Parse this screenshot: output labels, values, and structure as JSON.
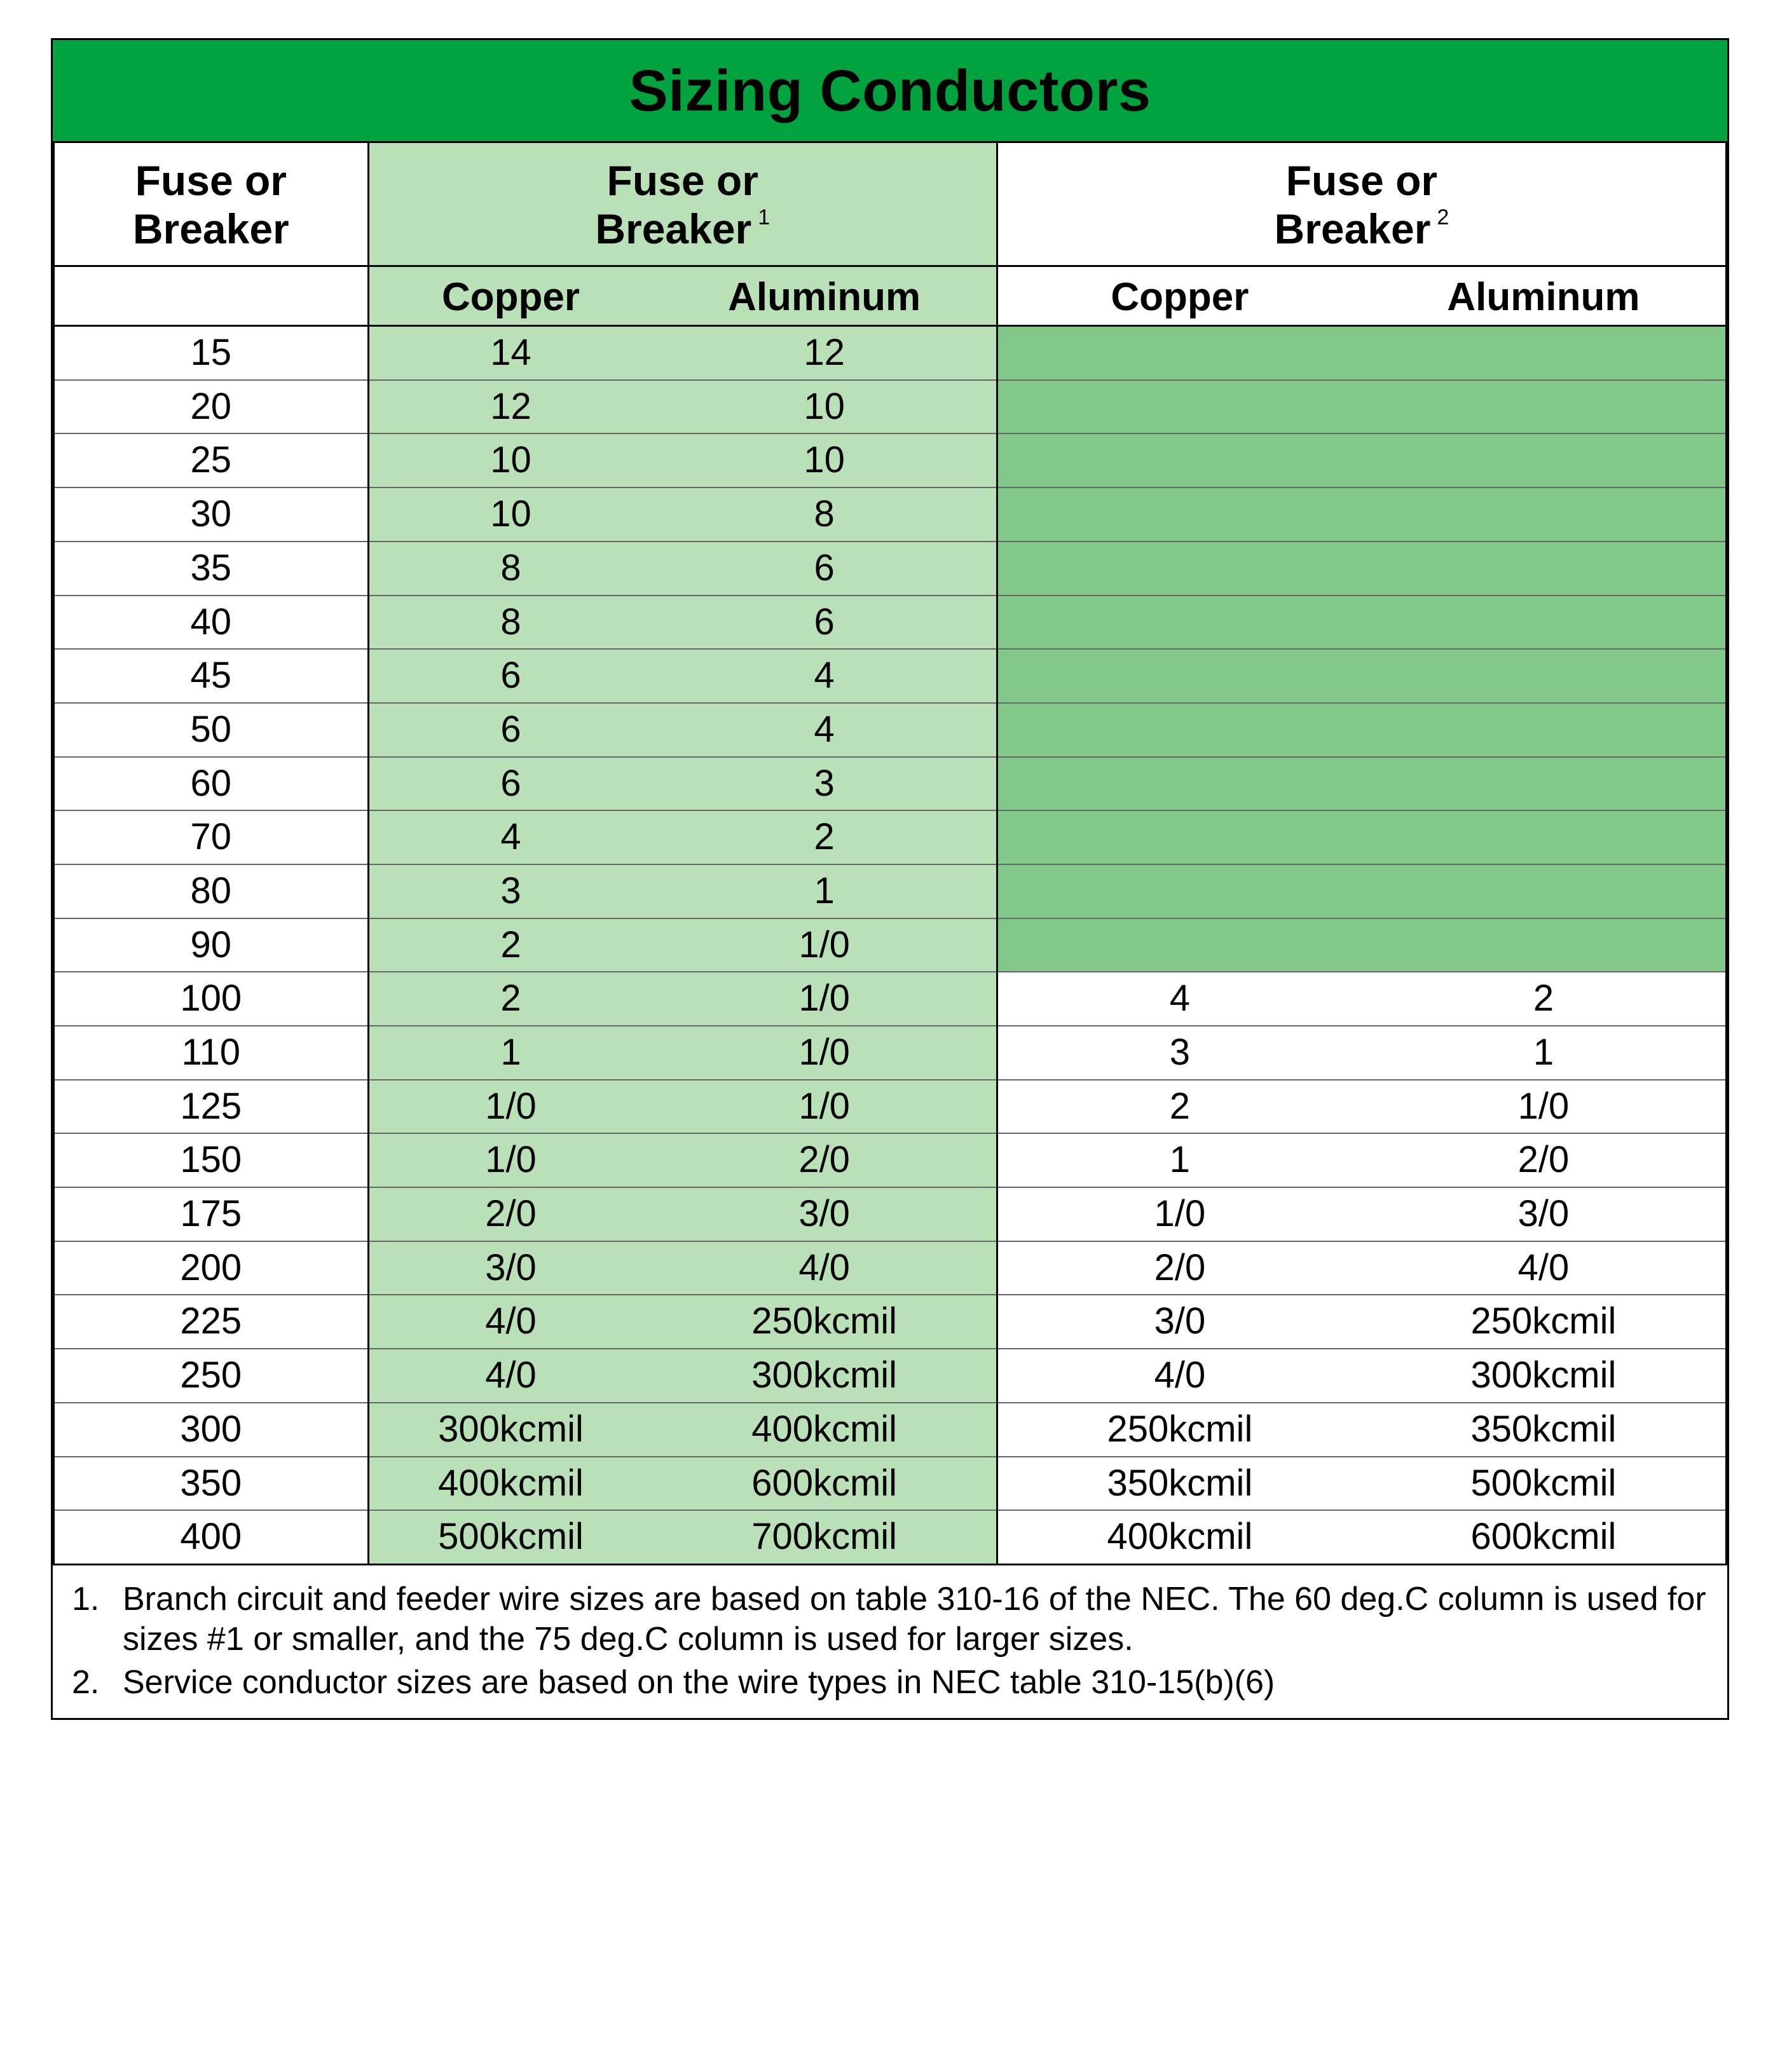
{
  "title": "Sizing Conductors",
  "colors": {
    "header_bg": "#00a33e",
    "light_green": "#b9e0b6",
    "mid_green": "#82c889",
    "border_dark": "#000000",
    "border_light": "#666666",
    "text": "#000000",
    "bg": "#ffffff"
  },
  "typography": {
    "title_fontsize": 92,
    "title_weight": 900,
    "header_fontsize": 66,
    "subheader_fontsize": 62,
    "cell_fontsize": 58,
    "footnote_fontsize": 52,
    "font_family": "Verdana, Tahoma, Arial, sans-serif"
  },
  "headers": {
    "col0": "Fuse or Breaker",
    "group1": "Fuse or Breaker",
    "group1_sup": "1",
    "group2": "Fuse or Breaker",
    "group2_sup": "2",
    "copper": "Copper",
    "aluminum": "Aluminum"
  },
  "rows": [
    {
      "fb": "15",
      "c1": "14",
      "a1": "12",
      "c2": "",
      "a2": "",
      "na2": true
    },
    {
      "fb": "20",
      "c1": "12",
      "a1": "10",
      "c2": "",
      "a2": "",
      "na2": true
    },
    {
      "fb": "25",
      "c1": "10",
      "a1": "10",
      "c2": "",
      "a2": "",
      "na2": true
    },
    {
      "fb": "30",
      "c1": "10",
      "a1": "8",
      "c2": "",
      "a2": "",
      "na2": true
    },
    {
      "fb": "35",
      "c1": "8",
      "a1": "6",
      "c2": "",
      "a2": "",
      "na2": true
    },
    {
      "fb": "40",
      "c1": "8",
      "a1": "6",
      "c2": "",
      "a2": "",
      "na2": true
    },
    {
      "fb": "45",
      "c1": "6",
      "a1": "4",
      "c2": "",
      "a2": "",
      "na2": true
    },
    {
      "fb": "50",
      "c1": "6",
      "a1": "4",
      "c2": "",
      "a2": "",
      "na2": true
    },
    {
      "fb": "60",
      "c1": "6",
      "a1": "3",
      "c2": "",
      "a2": "",
      "na2": true
    },
    {
      "fb": "70",
      "c1": "4",
      "a1": "2",
      "c2": "",
      "a2": "",
      "na2": true
    },
    {
      "fb": "80",
      "c1": "3",
      "a1": "1",
      "c2": "",
      "a2": "",
      "na2": true
    },
    {
      "fb": "90",
      "c1": "2",
      "a1": "1/0",
      "c2": "",
      "a2": "",
      "na2": true
    },
    {
      "fb": "100",
      "c1": "2",
      "a1": "1/0",
      "c2": "4",
      "a2": "2",
      "na2": false
    },
    {
      "fb": "110",
      "c1": "1",
      "a1": "1/0",
      "c2": "3",
      "a2": "1",
      "na2": false
    },
    {
      "fb": "125",
      "c1": "1/0",
      "a1": "1/0",
      "c2": "2",
      "a2": "1/0",
      "na2": false
    },
    {
      "fb": "150",
      "c1": "1/0",
      "a1": "2/0",
      "c2": "1",
      "a2": "2/0",
      "na2": false
    },
    {
      "fb": "175",
      "c1": "2/0",
      "a1": "3/0",
      "c2": "1/0",
      "a2": "3/0",
      "na2": false
    },
    {
      "fb": "200",
      "c1": "3/0",
      "a1": "4/0",
      "c2": "2/0",
      "a2": "4/0",
      "na2": false
    },
    {
      "fb": "225",
      "c1": "4/0",
      "a1": "250kcmil",
      "c2": "3/0",
      "a2": "250kcmil",
      "na2": false
    },
    {
      "fb": "250",
      "c1": "4/0",
      "a1": "300kcmil",
      "c2": "4/0",
      "a2": "300kcmil",
      "na2": false
    },
    {
      "fb": "300",
      "c1": "300kcmil",
      "a1": "400kcmil",
      "c2": "250kcmil",
      "a2": "350kcmil",
      "na2": false
    },
    {
      "fb": "350",
      "c1": "400kcmil",
      "a1": "600kcmil",
      "c2": "350kcmil",
      "a2": "500kcmil",
      "na2": false
    },
    {
      "fb": "400",
      "c1": "500kcmil",
      "a1": "700kcmil",
      "c2": "400kcmil",
      "a2": "600kcmil",
      "na2": false
    }
  ],
  "footnotes": [
    {
      "num": "1.",
      "text": "Branch circuit and feeder wire sizes are based on table 310-16 of the NEC. The 60 deg.C column is used for sizes #1 or smaller, and the 75 deg.C column is used for larger sizes."
    },
    {
      "num": "2.",
      "text": "Service conductor sizes are based on the wire types in NEC table 310-15(b)(6)"
    }
  ]
}
